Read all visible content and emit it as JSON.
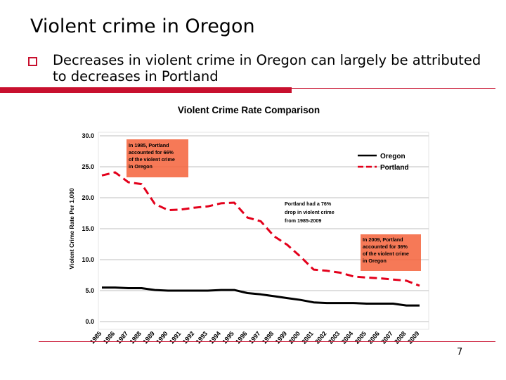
{
  "slide": {
    "title": "Violent crime in Oregon",
    "bullet": "Decreases in violent crime in Oregon can largely be attributed to decreases in Portland",
    "page_number": "7"
  },
  "colors": {
    "accent": "#c8102e",
    "oregon": "#000000",
    "portland": "#e3001b",
    "grid": "#bfbfbf"
  },
  "chart_data": {
    "type": "line",
    "title": "Violent Crime Rate Comparison",
    "xlabel": "",
    "ylabel": "Violent Crime Rate Per 1,000",
    "ylim": [
      0,
      30
    ],
    "yticks": [
      "0.0",
      "5.0",
      "10.0",
      "15.0",
      "20.0",
      "25.0",
      "30.0"
    ],
    "categories": [
      "1985",
      "1986",
      "1987",
      "1988",
      "1989",
      "1990",
      "1991",
      "1992",
      "1993",
      "1994",
      "1995",
      "1996",
      "1997",
      "1998",
      "1999",
      "2000",
      "2001",
      "2002",
      "2003",
      "2004",
      "2005",
      "2006",
      "2007",
      "2008",
      "2009"
    ],
    "series": [
      {
        "name": "Oregon",
        "style": "solid",
        "values": [
          5.5,
          5.5,
          5.4,
          5.4,
          5.1,
          5.0,
          5.0,
          5.0,
          5.0,
          5.1,
          5.1,
          4.6,
          4.4,
          4.1,
          3.8,
          3.5,
          3.1,
          3.0,
          3.0,
          3.0,
          2.9,
          2.9,
          2.9,
          2.6,
          2.6
        ]
      },
      {
        "name": "Portland",
        "style": "dashed",
        "values": [
          23.6,
          24.1,
          22.5,
          22.2,
          19.0,
          18.0,
          18.1,
          18.4,
          18.6,
          19.1,
          19.2,
          16.8,
          16.2,
          13.8,
          12.4,
          10.5,
          8.4,
          8.2,
          7.9,
          7.3,
          7.1,
          7.0,
          6.8,
          6.6,
          5.8
        ]
      }
    ],
    "legend": [
      "Oregon",
      "Portland"
    ],
    "annotations": [
      {
        "lines": [
          "In 1985, Portland",
          "accounted for 66%",
          "of the violent crime",
          "in Oregon"
        ],
        "boxed": true
      },
      {
        "lines": [
          "Portland had a 76%",
          "drop in violent crime",
          "from 1985-2009"
        ],
        "boxed": false
      },
      {
        "lines": [
          "In 2009, Portland",
          "accounted for 36%",
          "of the violent crime",
          "in Oregon"
        ],
        "boxed": true
      }
    ]
  }
}
